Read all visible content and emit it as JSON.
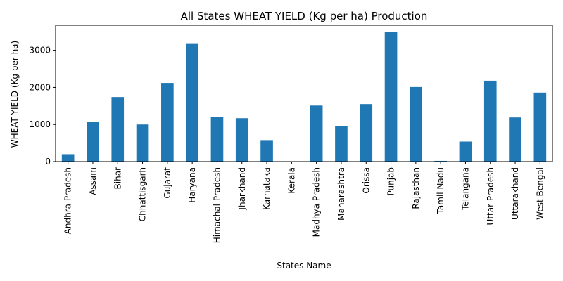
{
  "chart_data": {
    "type": "bar",
    "title": "All States WHEAT YIELD (Kg per ha) Production",
    "xlabel": "States Name",
    "ylabel": "WHEAT YIELD (Kg per ha)",
    "categories": [
      "Andhra Pradesh",
      "Assam",
      "Bihar",
      "Chhattisgarh",
      "Gujarat",
      "Haryana",
      "Himachal Pradesh",
      "Jharkhand",
      "Karnataka",
      "Kerala",
      "Madhya Pradesh",
      "Maharashtra",
      "Orissa",
      "Punjab",
      "Rajasthan",
      "Tamil Nadu",
      "Telangana",
      "Uttar Pradesh",
      "Uttarakhand",
      "West Bengal"
    ],
    "values": [
      200,
      1070,
      1740,
      1000,
      2120,
      3190,
      1200,
      1170,
      580,
      0,
      1510,
      960,
      1550,
      3500,
      2010,
      20,
      540,
      2180,
      1190,
      1860
    ],
    "yticks": [
      0,
      1000,
      2000,
      3000
    ],
    "ylim": [
      0,
      3675
    ],
    "bar_color": "#1f77b4",
    "grid": false,
    "legend": "none"
  }
}
